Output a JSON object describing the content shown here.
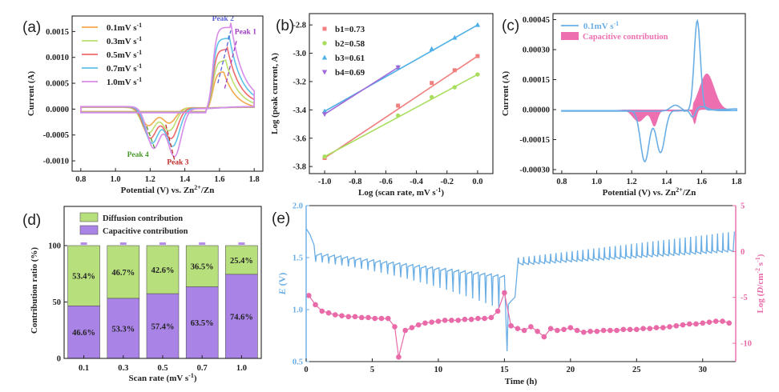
{
  "chart_data": [
    {
      "panel": "(a)",
      "type": "line",
      "xlabel": "Potential (V) vs. Zn2+/Zn",
      "ylabel": "Current (A)",
      "xlim": [
        0.75,
        1.85
      ],
      "ylim": [
        -0.0012,
        0.0018
      ],
      "xticks": [
        "0.8",
        "1.0",
        "1.2",
        "1.4",
        "1.6",
        "1.8"
      ],
      "yticks": [
        "-0.0010",
        "-0.0005",
        "0.0000",
        "0.0005",
        "0.0010",
        "0.0015"
      ],
      "legend": "top-left",
      "annotations": [
        "Peak 1",
        "Peak 2",
        "Peak 3",
        "Peak 4"
      ],
      "series": [
        {
          "name": "0.1mV s-1",
          "color": "#f2a94e",
          "anodic_peak": [
            1.62,
            0.0006
          ],
          "cathodic_peaks": [
            [
              1.19,
              -0.00035
            ],
            [
              1.31,
              -0.0003
            ]
          ]
        },
        {
          "name": "0.3mV s-1",
          "color": "#bbe06d",
          "anodic_peak": [
            1.63,
            0.0009
          ],
          "cathodic_peaks": [
            [
              1.19,
              -0.0005
            ],
            [
              1.31,
              -0.00045
            ]
          ]
        },
        {
          "name": "0.5mV s-1",
          "color": "#ee6a6a",
          "anodic_peak": [
            1.64,
            0.0011
          ],
          "cathodic_peaks": [
            [
              1.2,
              -0.0006
            ],
            [
              1.32,
              -0.0006
            ]
          ]
        },
        {
          "name": "0.7mV s-1",
          "color": "#5ec3e8",
          "anodic_peak": [
            1.65,
            0.0013
          ],
          "cathodic_peaks": [
            [
              1.21,
              -0.0007
            ],
            [
              1.33,
              -0.00075
            ]
          ]
        },
        {
          "name": "1.0mV s-1",
          "color": "#d78ce8",
          "anodic_peak": [
            1.66,
            0.0016
          ],
          "cathodic_peaks": [
            [
              1.22,
              -0.0008
            ],
            [
              1.34,
              -0.00095
            ]
          ]
        }
      ]
    },
    {
      "panel": "(b)",
      "type": "scatter",
      "xlabel": "Log (scan rate, mV s-1)",
      "ylabel": "Log (peak current, A)",
      "xlim": [
        -1.1,
        0.1
      ],
      "ylim": [
        -3.85,
        -2.72
      ],
      "xticks": [
        "-1.0",
        "-0.8",
        "-0.6",
        "-0.4",
        "-0.2",
        "0.0"
      ],
      "yticks": [
        "-3.8",
        "-3.6",
        "-3.4",
        "-3.2",
        "-3.0",
        "-2.8"
      ],
      "legend": "top-left",
      "x": [
        -1.0,
        -0.52,
        -0.3,
        -0.15,
        0.0
      ],
      "series": [
        {
          "name": "b1=0.73",
          "color": "#f08080",
          "marker": "square",
          "values": [
            -3.74,
            -3.37,
            -3.21,
            -3.12,
            -3.02
          ]
        },
        {
          "name": "b2=0.58",
          "color": "#a9dd5e",
          "marker": "circle",
          "values": [
            -3.73,
            -3.44,
            -3.31,
            -3.24,
            -3.15
          ]
        },
        {
          "name": "b3=0.61",
          "color": "#4fb0e6",
          "marker": "triangle-up",
          "values": [
            -3.41,
            -3.1,
            -2.97,
            -2.89,
            -2.8
          ]
        },
        {
          "name": "b4=0.69",
          "color": "#a06ad8",
          "marker": "triangle-down",
          "values": [
            -3.43,
            -3.1,
            null,
            null,
            null
          ]
        }
      ]
    },
    {
      "panel": "(c)",
      "type": "area",
      "xlabel": "Potential (V) vs. Zn2+/Zn",
      "ylabel": "Current (A)",
      "xlim": [
        0.75,
        1.85
      ],
      "ylim": [
        -0.00032,
        0.00048
      ],
      "xticks": [
        "0.8",
        "1.0",
        "1.2",
        "1.4",
        "1.6",
        "1.8"
      ],
      "yticks": [
        "-0.00030",
        "-0.00015",
        "0.00000",
        "0.00015",
        "0.00030",
        "0.00045"
      ],
      "legend": "top-left",
      "series": [
        {
          "name": "0.1mV s-1",
          "color": "#6aaee6"
        },
        {
          "name": "Capacitive contribution",
          "color": "#ee6fb0"
        }
      ]
    },
    {
      "panel": "(d)",
      "type": "bar",
      "xlabel": "Scan rate (mV s-1)",
      "ylabel": "Contribution ratio (%)",
      "ylim": [
        0,
        100
      ],
      "yticks": [
        "0",
        "50",
        "100"
      ],
      "legend": "top",
      "categories": [
        "0.1",
        "0.3",
        "0.5",
        "0.7",
        "1.0"
      ],
      "series": [
        {
          "name": "Capacitive contribution",
          "color": "#a983e6",
          "values": [
            46.6,
            53.3,
            57.4,
            63.5,
            74.6
          ],
          "labels": [
            "46.6%",
            "53.3%",
            "57.4%",
            "63.5%",
            "74.6%"
          ]
        },
        {
          "name": "Diffusion contribution",
          "color": "#b7e07d",
          "values": [
            53.4,
            46.7,
            42.6,
            36.5,
            25.4
          ],
          "labels": [
            "53.4%",
            "46.7%",
            "42.6%",
            "36.5%",
            "25.4%"
          ]
        }
      ]
    },
    {
      "panel": "(e)",
      "type": "line",
      "xlabel": "Time (h)",
      "ylabel": "E (V)",
      "y2label": "Log (D/cm-2 s-1)",
      "xlim": [
        0,
        32.5
      ],
      "ylim": [
        0.5,
        2.0
      ],
      "y2lim": [
        -12,
        5
      ],
      "xticks": [
        "0",
        "5",
        "10",
        "15",
        "20",
        "25",
        "30"
      ],
      "yticks": [
        "0.5",
        "1.0",
        "1.5",
        "2.0"
      ],
      "y2ticks": [
        "-10",
        "-5",
        "0",
        "5"
      ],
      "series": [
        {
          "name": "E",
          "color": "#6aaee6"
        },
        {
          "name": "Log D",
          "color": "#e96aa8",
          "x": [
            0.2,
            0.7,
            1.2,
            1.7,
            2.2,
            2.7,
            3.2,
            3.7,
            4.2,
            4.7,
            5.2,
            5.7,
            6.2,
            6.7,
            7.0,
            7.5,
            8.0,
            8.5,
            9.0,
            9.5,
            10.0,
            10.5,
            11.0,
            11.5,
            12.0,
            12.5,
            13.0,
            13.5,
            14.0,
            14.5,
            15.0,
            15.5,
            16.0,
            16.5,
            17.0,
            17.5,
            18.0,
            18.5,
            19.0,
            19.5,
            20.0,
            20.5,
            21.0,
            21.5,
            22.0,
            22.5,
            23.0,
            23.5,
            24.0,
            24.5,
            25.0,
            25.5,
            26.0,
            26.5,
            27.0,
            27.5,
            28.0,
            28.5,
            29.0,
            29.5,
            30.0,
            30.5,
            31.0,
            31.5,
            32.0
          ],
          "values": [
            -4.8,
            -5.8,
            -6.5,
            -6.7,
            -6.9,
            -7.0,
            -7.1,
            -7.1,
            -7.2,
            -7.2,
            -7.3,
            -7.3,
            -7.3,
            -8.2,
            -11.5,
            -8.6,
            -8.3,
            -8.0,
            -7.8,
            -7.7,
            -7.6,
            -7.5,
            -7.5,
            -7.5,
            -7.4,
            -7.4,
            -7.3,
            -7.3,
            -7.2,
            -6.5,
            -4.5,
            -8.1,
            -8.4,
            -8.6,
            -8.2,
            -8.7,
            -9.3,
            -8.4,
            -8.6,
            -8.5,
            -8.3,
            -8.6,
            -8.8,
            -8.7,
            -8.7,
            -8.6,
            -8.6,
            -8.6,
            -8.5,
            -8.5,
            -8.5,
            -8.4,
            -8.4,
            -8.3,
            -8.3,
            -8.2,
            -8.1,
            -8.0,
            -7.9,
            -7.9,
            -7.8,
            -7.7,
            -7.6,
            -7.6,
            -7.8
          ]
        }
      ]
    }
  ]
}
